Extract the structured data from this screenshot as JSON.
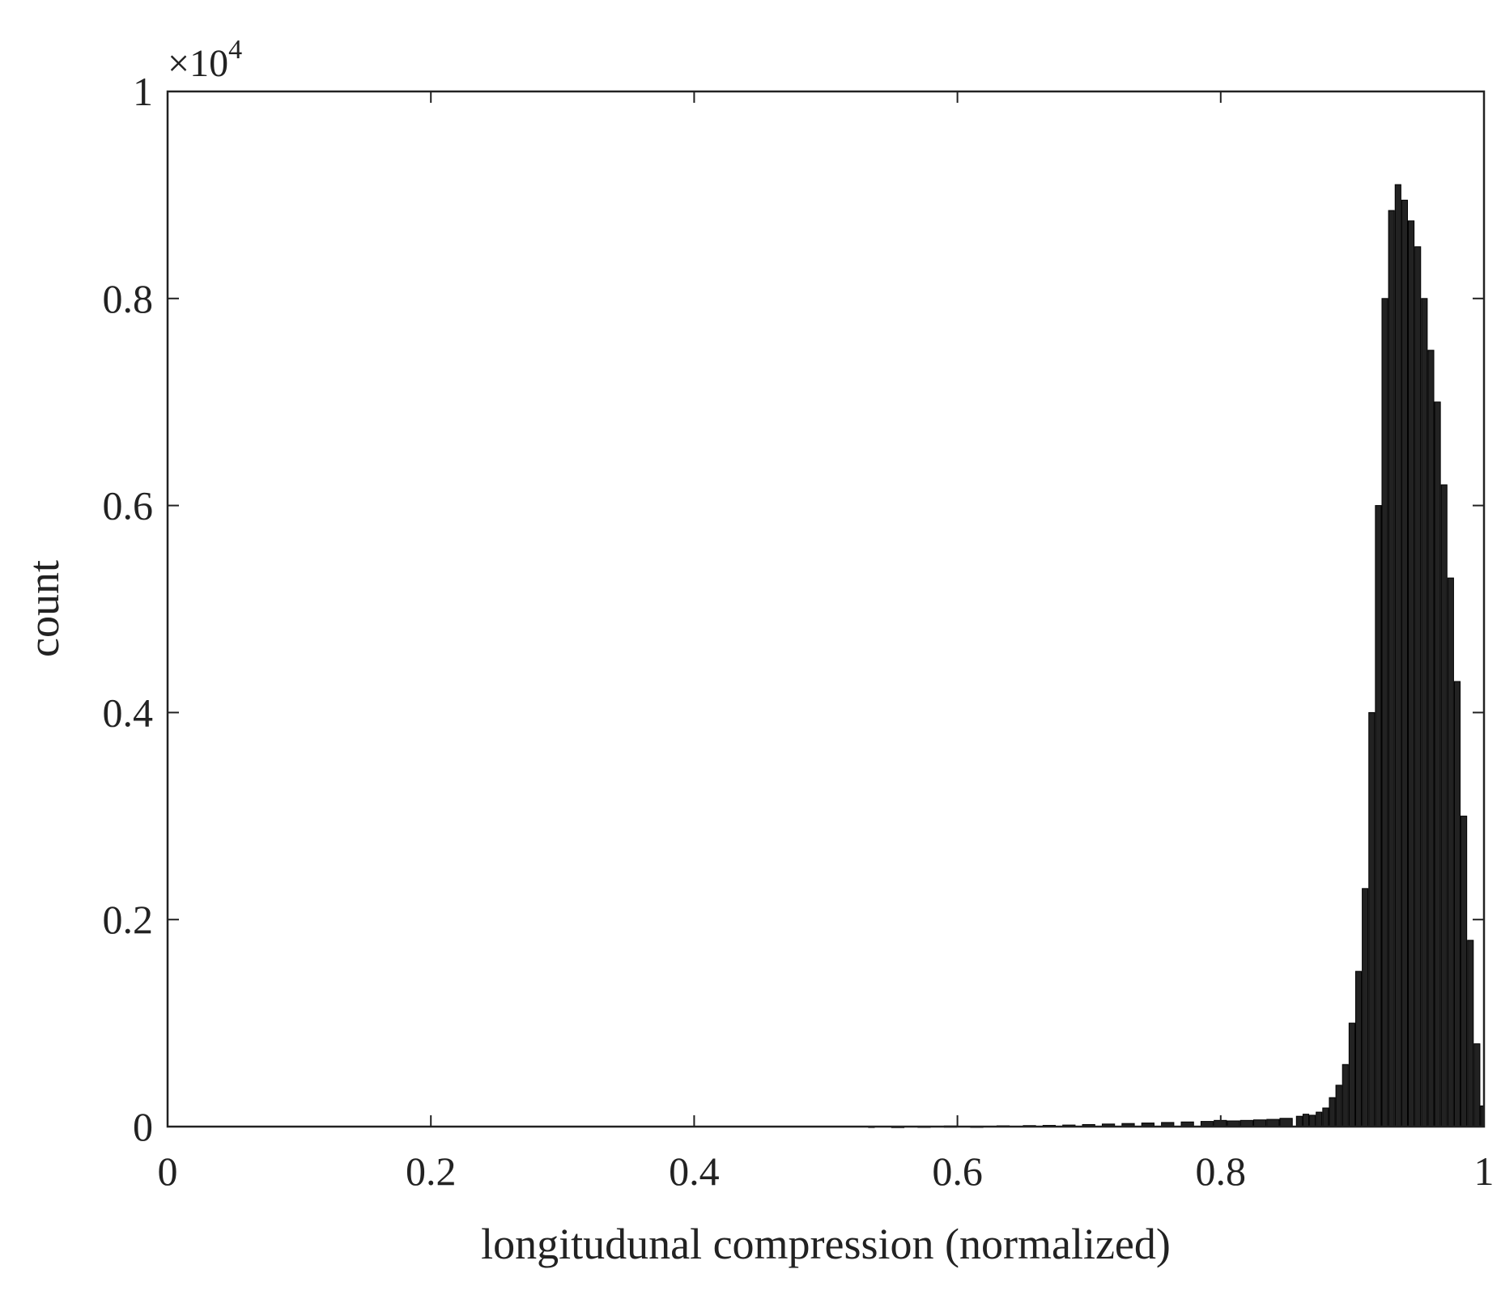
{
  "chart_data": {
    "type": "bar",
    "xlabel": "longitudunal compression (normalized)",
    "ylabel": "count",
    "y_multiplier": {
      "base": "×10",
      "exponent": "4"
    },
    "xlim": [
      0,
      1
    ],
    "ylim": [
      0,
      1
    ],
    "grid": false,
    "legend": "none",
    "bar_color": "#222222",
    "xticks": [
      {
        "value": 0,
        "label": "0"
      },
      {
        "value": 0.2,
        "label": "0.2"
      },
      {
        "value": 0.4,
        "label": "0.4"
      },
      {
        "value": 0.6,
        "label": "0.6"
      },
      {
        "value": 0.8,
        "label": "0.8"
      },
      {
        "value": 1,
        "label": "1"
      }
    ],
    "yticks": [
      {
        "value": 0,
        "label": "0"
      },
      {
        "value": 0.2,
        "label": "0.2"
      },
      {
        "value": 0.4,
        "label": "0.4"
      },
      {
        "value": 0.6,
        "label": "0.6"
      },
      {
        "value": 0.8,
        "label": "0.8"
      },
      {
        "value": 1,
        "label": "1"
      }
    ],
    "bars": [
      {
        "x": 0.535,
        "y": 0.0003
      },
      {
        "x": 0.555,
        "y": 0.0002
      },
      {
        "x": 0.575,
        "y": 0.0004
      },
      {
        "x": 0.595,
        "y": 0.0006
      },
      {
        "x": 0.615,
        "y": 0.0004
      },
      {
        "x": 0.635,
        "y": 0.0008
      },
      {
        "x": 0.655,
        "y": 0.001
      },
      {
        "x": 0.67,
        "y": 0.0012
      },
      {
        "x": 0.685,
        "y": 0.0015
      },
      {
        "x": 0.7,
        "y": 0.002
      },
      {
        "x": 0.715,
        "y": 0.0025
      },
      {
        "x": 0.73,
        "y": 0.003
      },
      {
        "x": 0.745,
        "y": 0.0035
      },
      {
        "x": 0.76,
        "y": 0.004
      },
      {
        "x": 0.775,
        "y": 0.0045
      },
      {
        "x": 0.79,
        "y": 0.005
      },
      {
        "x": 0.8,
        "y": 0.006
      },
      {
        "x": 0.81,
        "y": 0.0055
      },
      {
        "x": 0.82,
        "y": 0.006
      },
      {
        "x": 0.83,
        "y": 0.0065
      },
      {
        "x": 0.84,
        "y": 0.007
      },
      {
        "x": 0.85,
        "y": 0.008
      },
      {
        "x": 0.86,
        "y": 0.01
      },
      {
        "x": 0.865,
        "y": 0.012
      },
      {
        "x": 0.87,
        "y": 0.011
      },
      {
        "x": 0.875,
        "y": 0.014
      },
      {
        "x": 0.88,
        "y": 0.018
      },
      {
        "x": 0.885,
        "y": 0.028
      },
      {
        "x": 0.89,
        "y": 0.04
      },
      {
        "x": 0.895,
        "y": 0.06
      },
      {
        "x": 0.9,
        "y": 0.1
      },
      {
        "x": 0.905,
        "y": 0.15
      },
      {
        "x": 0.91,
        "y": 0.23
      },
      {
        "x": 0.915,
        "y": 0.4
      },
      {
        "x": 0.92,
        "y": 0.6
      },
      {
        "x": 0.925,
        "y": 0.8
      },
      {
        "x": 0.93,
        "y": 0.885
      },
      {
        "x": 0.935,
        "y": 0.91
      },
      {
        "x": 0.94,
        "y": 0.895
      },
      {
        "x": 0.945,
        "y": 0.875
      },
      {
        "x": 0.95,
        "y": 0.85
      },
      {
        "x": 0.955,
        "y": 0.8
      },
      {
        "x": 0.96,
        "y": 0.75
      },
      {
        "x": 0.965,
        "y": 0.7
      },
      {
        "x": 0.97,
        "y": 0.62
      },
      {
        "x": 0.975,
        "y": 0.53
      },
      {
        "x": 0.98,
        "y": 0.43
      },
      {
        "x": 0.985,
        "y": 0.3
      },
      {
        "x": 0.99,
        "y": 0.18
      },
      {
        "x": 0.995,
        "y": 0.08
      },
      {
        "x": 1.0,
        "y": 0.02
      }
    ]
  }
}
